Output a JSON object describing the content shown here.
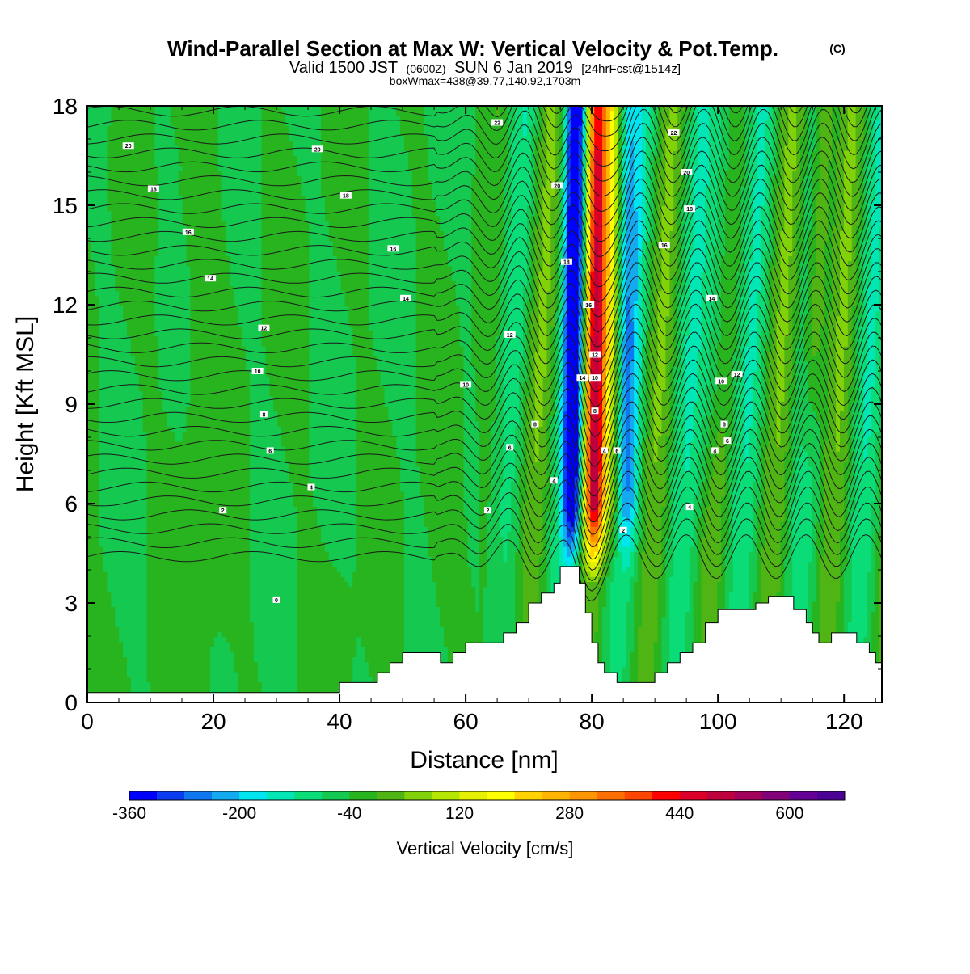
{
  "header": {
    "title": "Wind-Parallel Section at Max W: Vertical Velocity & Pot.Temp.",
    "copyright": "(C)",
    "valid_prefix": "Valid 1500 JST",
    "valid_utc": "(0600Z)",
    "valid_date": "SUN 6 Jan 2019",
    "forecast": "[24hrFcst@1514z]",
    "box_info": "boxWmax=438@39.77,140.92,1703m"
  },
  "chart_data": {
    "type": "heatmap",
    "xlabel": "Distance [nm]",
    "ylabel": "Height [Kft MSL]",
    "xlim": [
      0,
      126
    ],
    "ylim": [
      0,
      18
    ],
    "x_ticks": [
      0,
      20,
      40,
      60,
      80,
      100,
      120
    ],
    "y_ticks": [
      0,
      3,
      6,
      9,
      12,
      15,
      18
    ],
    "background_value_cm_s": -40,
    "updraft_core": {
      "x_center_nm": 80.5,
      "peak_value_cm_s": 438
    },
    "downdraft_core": {
      "x_center_nm": 77,
      "peak_value_cm_s": -360
    },
    "colorbar": {
      "label": "Vertical Velocity [cm/s]",
      "min": -360,
      "max": 680,
      "step": 40,
      "tick_labels": [
        "-360",
        "-200",
        "-40",
        "120",
        "280",
        "440",
        "600"
      ],
      "tick_values": [
        -360,
        -200,
        -40,
        120,
        280,
        440,
        600
      ],
      "colors": [
        "#0000ff",
        "#0a3cf0",
        "#0f78f0",
        "#14aaf0",
        "#00e6f0",
        "#00e6b4",
        "#0adc78",
        "#14c850",
        "#28b41e",
        "#50b414",
        "#82d20a",
        "#b4e600",
        "#e6f000",
        "#ffff00",
        "#ffd200",
        "#ffb400",
        "#ff9600",
        "#ff6e00",
        "#ff4600",
        "#ff0000",
        "#dc0028",
        "#be003c",
        "#a0005a",
        "#820078",
        "#640096",
        "#4b0096"
      ]
    },
    "terrain": {
      "x": [
        0,
        40,
        40,
        44,
        46,
        48,
        50,
        52,
        56,
        58,
        60,
        62,
        66,
        68,
        70,
        72,
        74,
        75,
        77,
        78,
        79,
        80,
        81,
        82,
        84,
        86,
        88,
        90,
        92,
        94,
        96,
        98,
        100,
        104,
        106,
        108,
        110,
        112,
        114,
        115,
        116,
        118,
        120,
        122,
        124,
        125,
        126
      ],
      "height": [
        0.3,
        0.3,
        0.6,
        0.6,
        0.9,
        1.2,
        1.5,
        1.5,
        1.2,
        1.5,
        1.8,
        1.8,
        2.1,
        2.4,
        3.0,
        3.3,
        3.6,
        4.1,
        4.1,
        3.6,
        2.7,
        1.8,
        1.2,
        0.9,
        0.6,
        0.6,
        0.6,
        0.9,
        1.2,
        1.5,
        1.8,
        2.4,
        2.8,
        2.8,
        3.0,
        3.2,
        3.2,
        2.8,
        2.4,
        2.1,
        1.8,
        2.1,
        2.1,
        1.8,
        1.5,
        1.2,
        1.2
      ]
    },
    "contour_labels": [
      {
        "text": "20",
        "x": 6.5,
        "y": 16.8
      },
      {
        "text": "20",
        "x": 36.5,
        "y": 16.7
      },
      {
        "text": "18",
        "x": 10.5,
        "y": 15.5
      },
      {
        "text": "18",
        "x": 41,
        "y": 15.3
      },
      {
        "text": "16",
        "x": 16,
        "y": 14.2
      },
      {
        "text": "16",
        "x": 48.5,
        "y": 13.7
      },
      {
        "text": "14",
        "x": 19.5,
        "y": 12.8
      },
      {
        "text": "14",
        "x": 50.5,
        "y": 12.2
      },
      {
        "text": "12",
        "x": 28,
        "y": 11.3
      },
      {
        "text": "12",
        "x": 67,
        "y": 11.1
      },
      {
        "text": "10",
        "x": 27,
        "y": 10.0
      },
      {
        "text": "10",
        "x": 60,
        "y": 9.6
      },
      {
        "text": "8",
        "x": 28,
        "y": 8.7
      },
      {
        "text": "8",
        "x": 71,
        "y": 8.4
      },
      {
        "text": "6",
        "x": 29,
        "y": 7.6
      },
      {
        "text": "6",
        "x": 67,
        "y": 7.7
      },
      {
        "text": "4",
        "x": 35.5,
        "y": 6.5
      },
      {
        "text": "4",
        "x": 74,
        "y": 6.7
      },
      {
        "text": "2",
        "x": 21.5,
        "y": 5.8
      },
      {
        "text": "2",
        "x": 63.5,
        "y": 5.8
      },
      {
        "text": "0",
        "x": 30,
        "y": 3.1
      },
      {
        "text": "22",
        "x": 65,
        "y": 17.5
      },
      {
        "text": "22",
        "x": 93,
        "y": 17.2
      },
      {
        "text": "20",
        "x": 95,
        "y": 16.0
      },
      {
        "text": "18",
        "x": 95.5,
        "y": 14.9
      },
      {
        "text": "16",
        "x": 91.5,
        "y": 13.8
      },
      {
        "text": "14",
        "x": 99,
        "y": 12.2
      },
      {
        "text": "12",
        "x": 103,
        "y": 9.9
      },
      {
        "text": "10",
        "x": 100.5,
        "y": 9.7
      },
      {
        "text": "8",
        "x": 101,
        "y": 8.4
      },
      {
        "text": "6",
        "x": 101.5,
        "y": 7.9
      },
      {
        "text": "4",
        "x": 99.5,
        "y": 7.6
      },
      {
        "text": "4",
        "x": 95.5,
        "y": 5.9
      },
      {
        "text": "2",
        "x": 85,
        "y": 5.2
      },
      {
        "text": "20",
        "x": 74.5,
        "y": 15.6
      },
      {
        "text": "18",
        "x": 76,
        "y": 13.3
      },
      {
        "text": "16",
        "x": 79.5,
        "y": 12.0
      },
      {
        "text": "12",
        "x": 80.5,
        "y": 10.5
      },
      {
        "text": "14",
        "x": 78.5,
        "y": 9.8
      },
      {
        "text": "10",
        "x": 80.5,
        "y": 9.8
      },
      {
        "text": "8",
        "x": 80.5,
        "y": 8.8
      },
      {
        "text": "4",
        "x": 82,
        "y": 7.6
      },
      {
        "text": "6",
        "x": 84,
        "y": 7.6
      }
    ]
  }
}
